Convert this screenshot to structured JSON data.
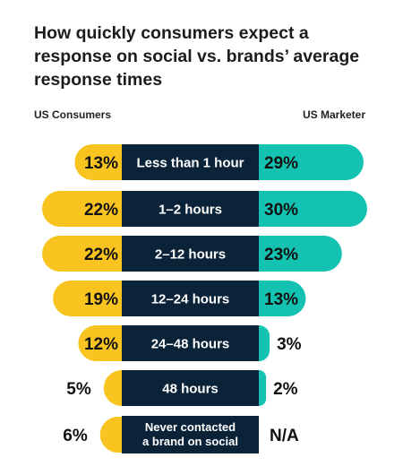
{
  "chart_data": {
    "type": "bar",
    "title": "How quickly consumers expect a response on social vs. brands’ average response times",
    "categories": [
      "Less than 1 hour",
      "1–2 hours",
      "2–12 hours",
      "12–24 hours",
      "24–48 hours",
      "48 hours",
      "Never contacted a brand on social"
    ],
    "series": [
      {
        "name": "US Consumers",
        "values": [
          13,
          22,
          22,
          19,
          12,
          5,
          6
        ],
        "labels": [
          "13%",
          "22%",
          "22%",
          "19%",
          "12%",
          "5%",
          "6%"
        ]
      },
      {
        "name": "US Marketer",
        "values": [
          29,
          30,
          23,
          13,
          3,
          2,
          null
        ],
        "labels": [
          "29%",
          "30%",
          "23%",
          "13%",
          "3%",
          "2%",
          "N/A"
        ]
      }
    ],
    "xlim": [
      0,
      30
    ],
    "colors": {
      "consumers": "#f9c320",
      "marketer": "#13c2b0",
      "category_box": "#0b2339"
    }
  }
}
